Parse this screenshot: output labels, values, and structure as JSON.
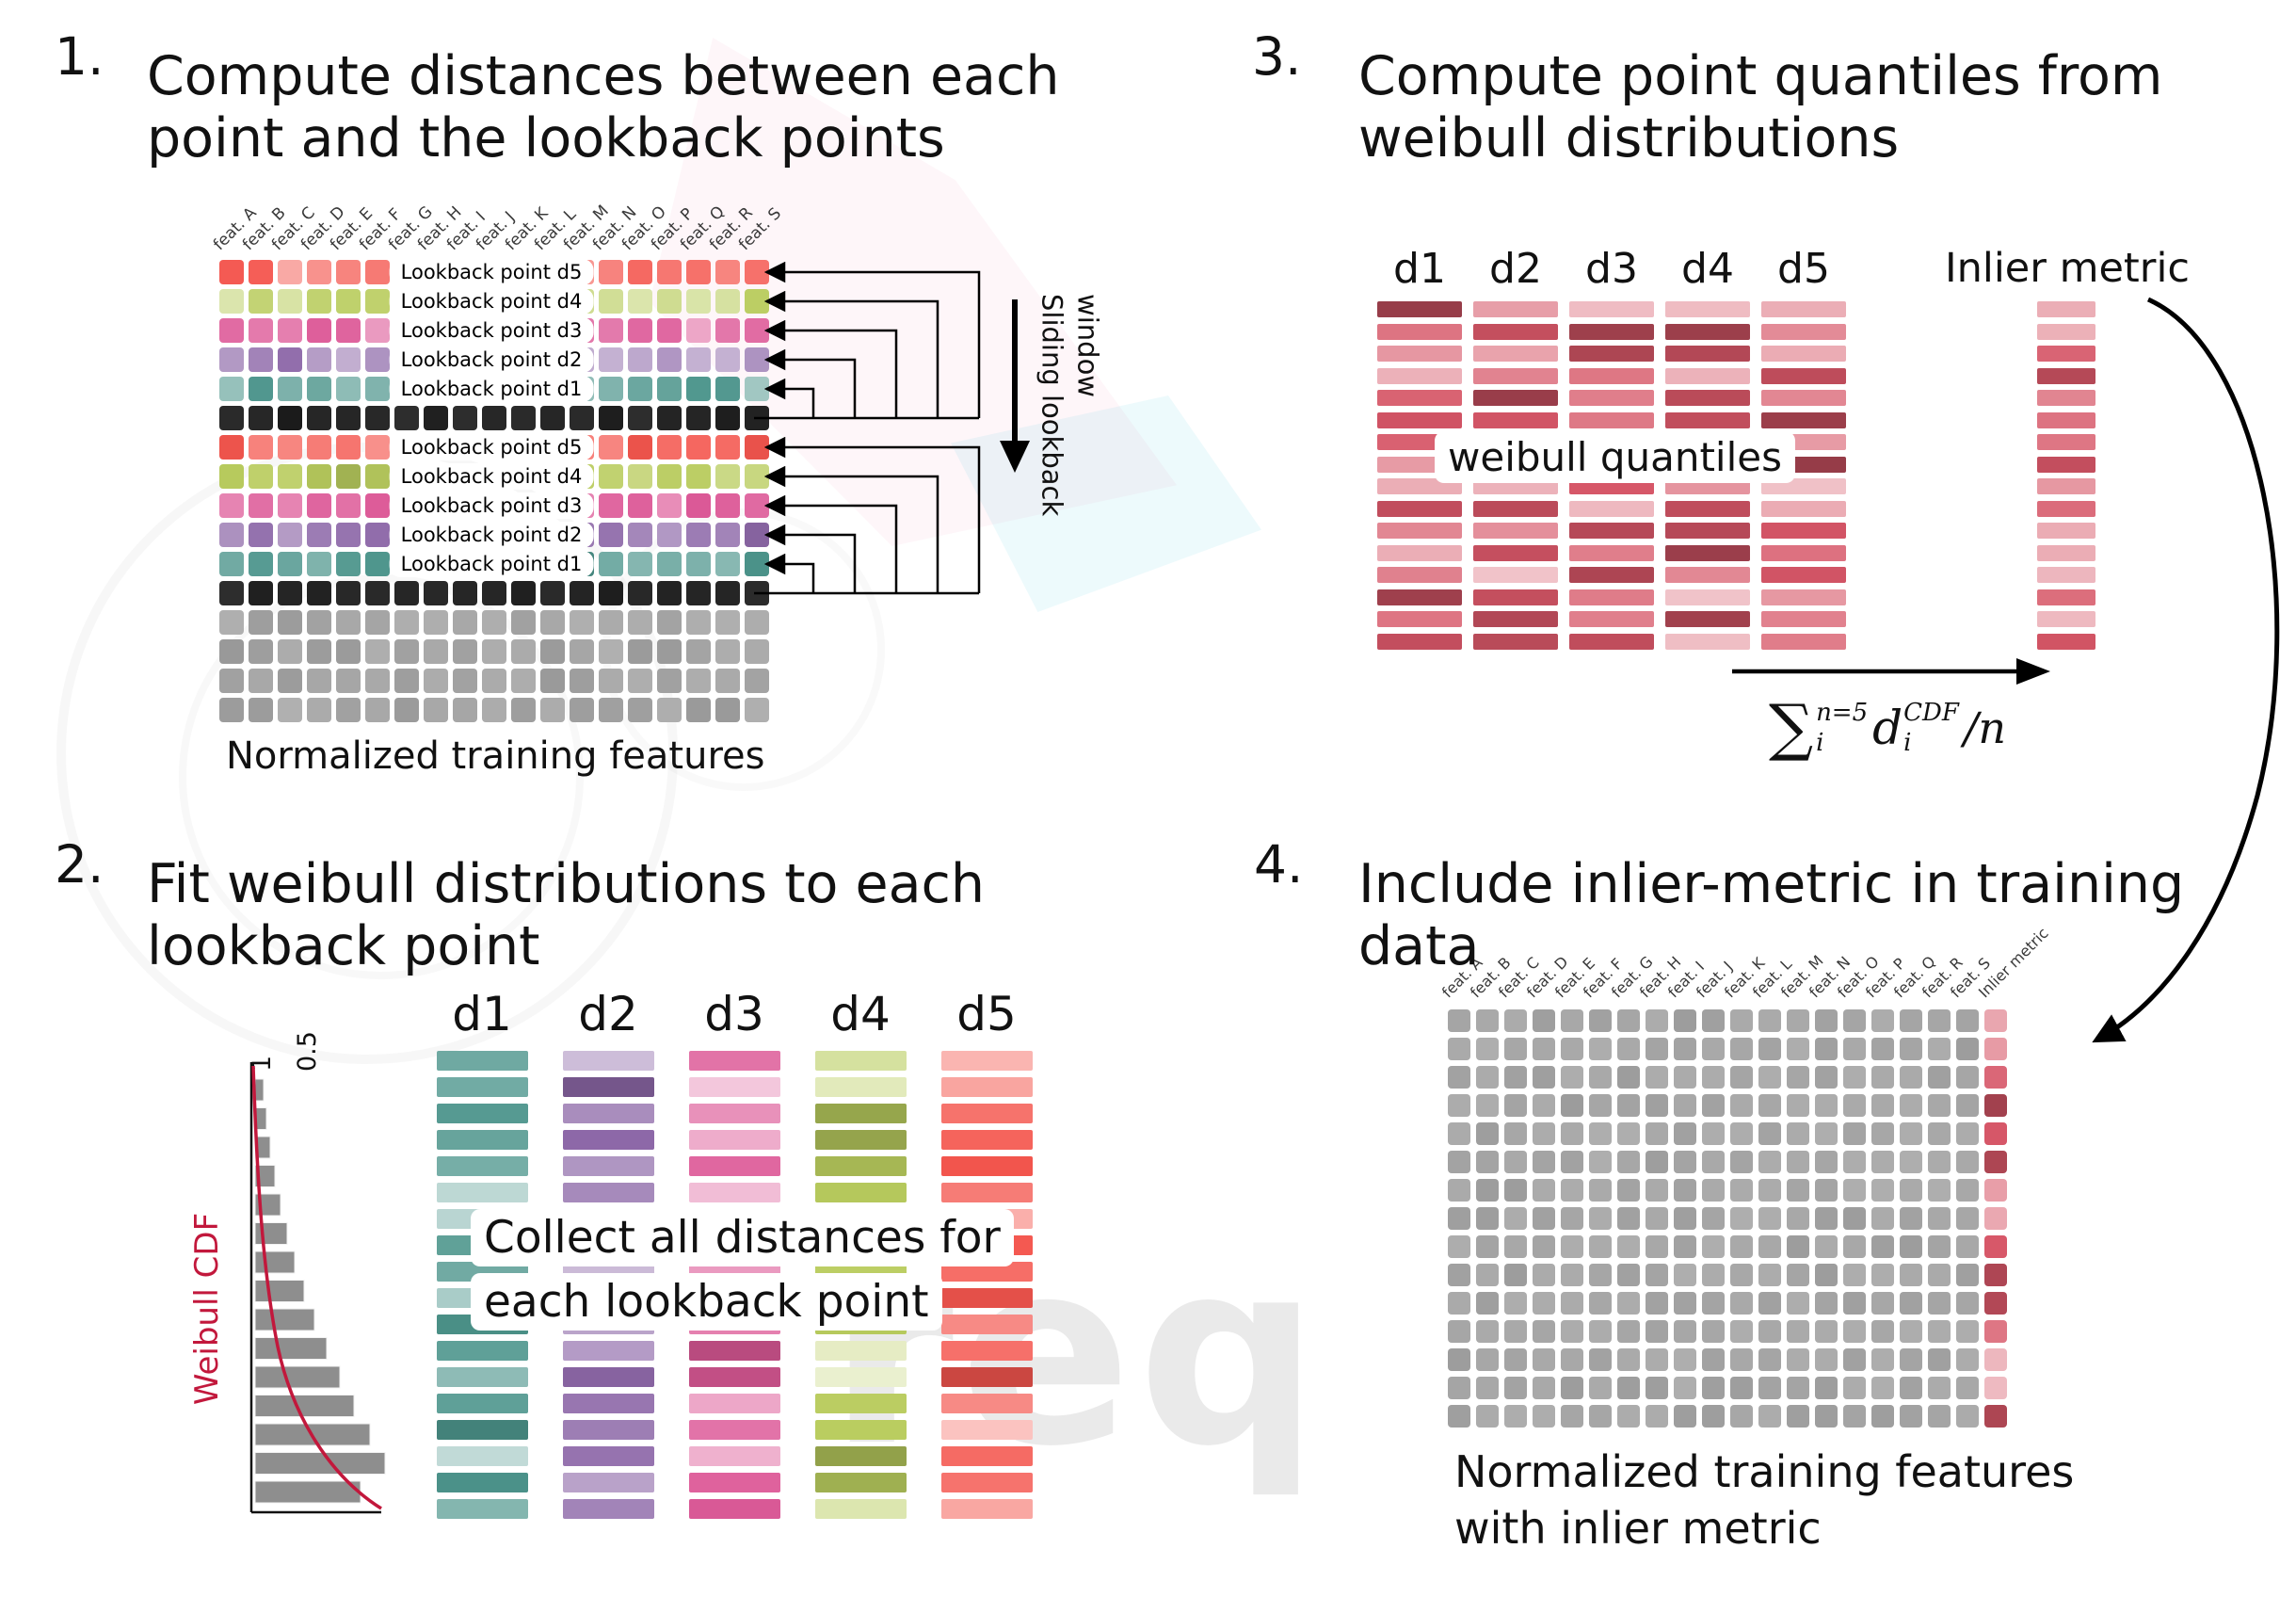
{
  "watermark": {
    "text": "req"
  },
  "step1": {
    "number": "1.",
    "title_line1": "Compute distances between each",
    "title_line2": "point and the lookback points",
    "caption": "Normalized training features",
    "sliding_label": "Sliding lookback window"
  },
  "step2": {
    "number": "2.",
    "title_line1": "Fit weibull distributions to each",
    "title_line2": "lookback point",
    "overlay_line1": "Collect all distances for",
    "overlay_line2": "each lookback point",
    "cdf_label": "Weibull CDF",
    "tick_1": "1",
    "tick_05": "0.5"
  },
  "step3": {
    "number": "3.",
    "title_line1": "Compute point quantiles from",
    "title_line2": "weibull distributions",
    "overlay": "weibull quantiles",
    "inlier_label": "Inlier metric",
    "formula": {
      "sum": "∑",
      "sum_sup": "n=5",
      "sum_sub": "i",
      "var": "d",
      "var_sup": "CDF",
      "var_sub": "i",
      "tail": "/n"
    }
  },
  "step4": {
    "number": "4.",
    "title_line1": "Include inlier-metric in training",
    "title_line2": "data",
    "caption_line1": "Normalized training features",
    "caption_line2": "with inlier metric",
    "inlier_label": "Inlier metric"
  },
  "features": [
    "feat. A",
    "feat. B",
    "feat. C",
    "feat. D",
    "feat. E",
    "feat. F",
    "feat. G",
    "feat. H",
    "feat. I",
    "feat. J",
    "feat. K",
    "feat. L",
    "feat. M",
    "feat. N",
    "feat. O",
    "feat. P",
    "feat. Q",
    "feat. R",
    "feat. S"
  ],
  "lookback_labels": [
    "Lookback point d5",
    "Lookback point d4",
    "Lookback point d3",
    "Lookback point d2",
    "Lookback point d1"
  ],
  "distance_headers": [
    "d1",
    "d2",
    "d3",
    "d4",
    "d5"
  ],
  "colors": {
    "d1": "#4d958c",
    "d2": "#8d68a8",
    "d3": "#dd5a98",
    "d4": "#b9cc5e",
    "d5": "#f4564e",
    "black_row": "#1b1b1b",
    "gray_cell": "#a8a8a8",
    "quantile": "#d65667",
    "cdf_red": "#c2183c",
    "hist_gray": "#8e8e8e"
  }
}
